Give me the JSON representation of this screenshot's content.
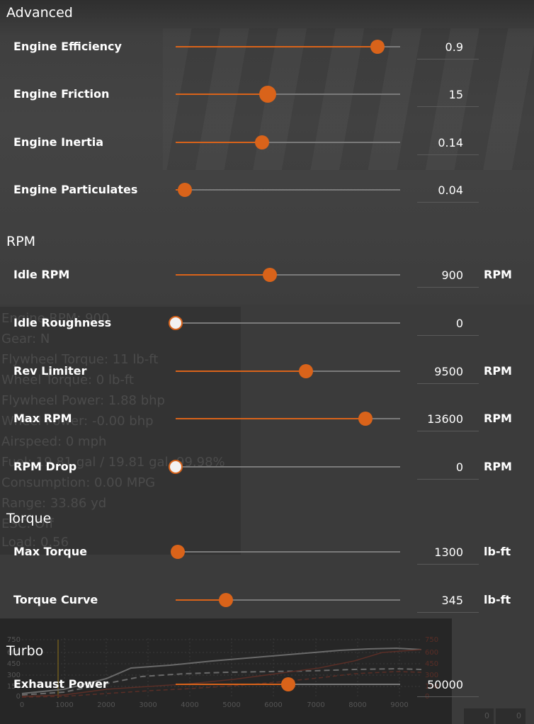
{
  "sections": {
    "advanced": "Advanced",
    "rpm": "RPM",
    "torque": "Torque",
    "turbo": "Turbo"
  },
  "accent_color": "#d9631a",
  "rows": {
    "engine_efficiency": {
      "label": "Engine Efficiency",
      "value": "0.9",
      "unit": "",
      "slider_fraction": 0.9
    },
    "engine_friction": {
      "label": "Engine Friction",
      "value": "15",
      "unit": "",
      "slider_fraction": 0.41
    },
    "engine_inertia": {
      "label": "Engine Inertia",
      "value": "0.14",
      "unit": "",
      "slider_fraction": 0.385
    },
    "engine_particulates": {
      "label": "Engine Particulates",
      "value": "0.04",
      "unit": "",
      "slider_fraction": 0.04
    },
    "idle_rpm": {
      "label": "Idle RPM",
      "value": "900",
      "unit": "RPM",
      "slider_fraction": 0.42
    },
    "idle_roughness": {
      "label": "Idle Roughness",
      "value": "0",
      "unit": "",
      "slider_fraction": 0.0
    },
    "rev_limiter": {
      "label": "Rev Limiter",
      "value": "9500",
      "unit": "RPM",
      "slider_fraction": 0.58
    },
    "max_rpm": {
      "label": "Max RPM",
      "value": "13600",
      "unit": "RPM",
      "slider_fraction": 0.845
    },
    "rpm_drop": {
      "label": "RPM Drop",
      "value": "0",
      "unit": "RPM",
      "slider_fraction": 0.0
    },
    "max_torque": {
      "label": "Max Torque",
      "value": "1300",
      "unit": "lb-ft",
      "slider_fraction": 0.01
    },
    "torque_curve": {
      "label": "Torque Curve",
      "value": "345",
      "unit": "lb-ft",
      "slider_fraction": 0.225
    },
    "exhaust_power": {
      "label": "Exhaust Power",
      "value": "50000",
      "unit": "",
      "slider_fraction": 0.5
    }
  },
  "overlay_stats": [
    "Engine RPM: 900",
    "Gear: N",
    "Flywheel Torque: 11 lb-ft",
    "Wheel Torque: 0 lb-ft",
    "Flywheel Power: 1.88 bhp",
    "Wheel Power: -0.00 bhp",
    "Airspeed: 0 mph",
    "Fuel: 19.81 gal / 19.81 gal, 99.98%",
    "Consumption: 0.00 MPG",
    "Range: 33.86 yd",
    "ESC: Off",
    "Load: 0.56"
  ],
  "graph": {
    "y_ticks": [
      "750",
      "600",
      "450",
      "300",
      "150",
      "0"
    ],
    "x_ticks": [
      "0",
      "1000",
      "2000",
      "3000",
      "4000",
      "5000",
      "6000",
      "7000",
      "8000",
      "9000"
    ],
    "right_ticks": [
      "750",
      "600",
      "450",
      "300",
      "150",
      "0"
    ]
  },
  "corner_values": [
    "0",
    "0"
  ]
}
